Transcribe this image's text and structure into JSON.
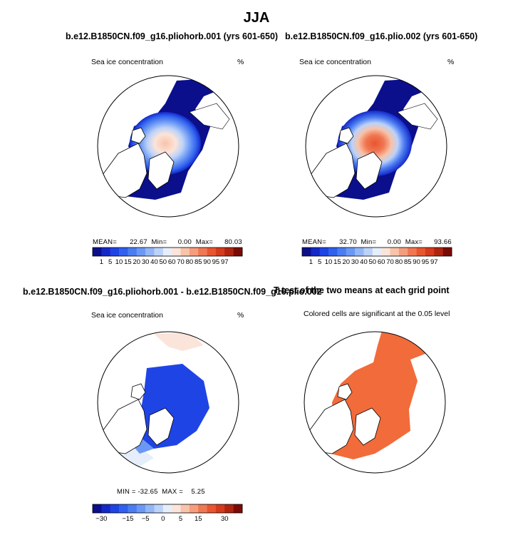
{
  "figure": {
    "main_title": "JJA"
  },
  "panels": {
    "p1": {
      "title": "b.e12.B1850CN.f09_g16.pliohorb.001 (yrs 601-650)",
      "variable": "Sea ice concentration",
      "units": "%",
      "mean_label": "MEAN=",
      "mean_value": "22.67",
      "min_label": "Min=",
      "min_value": "0.00",
      "max_label": "Max=",
      "max_value": "80.03"
    },
    "p2": {
      "title": "b.e12.B1850CN.f09_g16.plio.002 (yrs 601-650)",
      "variable": "Sea ice concentration",
      "units": "%",
      "mean_label": "MEAN=",
      "mean_value": "32.70",
      "min_label": "Min=",
      "min_value": "0.00",
      "max_label": "Max=",
      "max_value": "93.66"
    },
    "p3": {
      "title": "b.e12.B1850CN.f09_g16.pliohorb.001 - b.e12.B1850CN.f09_g16.plio.002",
      "variable": "Sea ice concentration",
      "units": "%",
      "stats_text": "MIN = -32.65  MAX =    5.25"
    },
    "p4": {
      "title": "T-test of the two means at each grid point",
      "subtitle": "Colored cells are significant at the 0.05 level"
    }
  },
  "chart_data": [
    {
      "type": "heatmap",
      "title": "b.e12.B1850CN.f09_g16.pliohorb.001 (yrs 601-650)",
      "variable": "Sea ice concentration",
      "units": "%",
      "projection": "north polar stereographic",
      "season": "JJA",
      "mean": 22.67,
      "min": 0.0,
      "max": 80.03,
      "colorbar": {
        "levels": [
          1,
          5,
          10,
          15,
          20,
          30,
          40,
          50,
          60,
          70,
          80,
          85,
          90,
          95,
          97
        ],
        "tick_labels": [
          "1",
          "5",
          "10",
          "15",
          "20",
          "30",
          "40",
          "50",
          "60",
          "70",
          "80",
          "85",
          "90",
          "95",
          "97"
        ],
        "colors": [
          "#0b0f8c",
          "#1428c8",
          "#1f44e6",
          "#2f60ee",
          "#4a7cf2",
          "#6b98f4",
          "#93b6f7",
          "#bcd2f9",
          "#e6eefb",
          "#fbe4da",
          "#f8c3a9",
          "#f59d7c",
          "#f07752",
          "#e8552f",
          "#d43a1c",
          "#b0240f",
          "#7a0b04"
        ]
      },
      "central_value_pct": 60
    },
    {
      "type": "heatmap",
      "title": "b.e12.B1850CN.f09_g16.plio.002 (yrs 601-650)",
      "variable": "Sea ice concentration",
      "units": "%",
      "projection": "north polar stereographic",
      "season": "JJA",
      "mean": 32.7,
      "min": 0.0,
      "max": 93.66,
      "colorbar": {
        "levels": [
          1,
          5,
          10,
          15,
          20,
          30,
          40,
          50,
          60,
          70,
          80,
          85,
          90,
          95,
          97
        ],
        "tick_labels": [
          "1",
          "5",
          "10",
          "15",
          "20",
          "30",
          "40",
          "50",
          "60",
          "70",
          "80",
          "85",
          "90",
          "95",
          "97"
        ],
        "colors": [
          "#0b0f8c",
          "#1428c8",
          "#1f44e6",
          "#2f60ee",
          "#4a7cf2",
          "#6b98f4",
          "#93b6f7",
          "#bcd2f9",
          "#e6eefb",
          "#fbe4da",
          "#f8c3a9",
          "#f59d7c",
          "#f07752",
          "#e8552f",
          "#d43a1c",
          "#b0240f",
          "#7a0b04"
        ]
      },
      "central_value_pct": 90
    },
    {
      "type": "heatmap",
      "title": "b.e12.B1850CN.f09_g16.pliohorb.001 - b.e12.B1850CN.f09_g16.plio.002",
      "variable": "Sea ice concentration",
      "units": "%",
      "projection": "north polar stereographic",
      "season": "JJA",
      "min": -32.65,
      "max": 5.25,
      "colorbar": {
        "levels": [
          -30,
          -25,
          -20,
          -15,
          -10,
          -5,
          -2,
          0,
          2,
          5,
          10,
          15,
          20,
          25,
          30
        ],
        "tick_labels": [
          "-30",
          "-15",
          "-5",
          "0",
          "5",
          "15",
          "30"
        ],
        "colors": [
          "#0b0f8c",
          "#1428c8",
          "#1f44e6",
          "#2f60ee",
          "#4a7cf2",
          "#6b98f4",
          "#93b6f7",
          "#bcd2f9",
          "#e6eefb",
          "#fbe4da",
          "#f8c3a9",
          "#f59d7c",
          "#f07752",
          "#e8552f",
          "#d43a1c",
          "#b0240f",
          "#7a0b04"
        ]
      },
      "central_value_pct": -28
    },
    {
      "type": "heatmap",
      "title": "T-test of the two means at each grid point",
      "subtitle": "Colored cells are significant at the 0.05 level",
      "projection": "north polar stereographic",
      "season": "JJA",
      "significance_level": 0.05,
      "significant_color": "#f26b3a"
    }
  ]
}
